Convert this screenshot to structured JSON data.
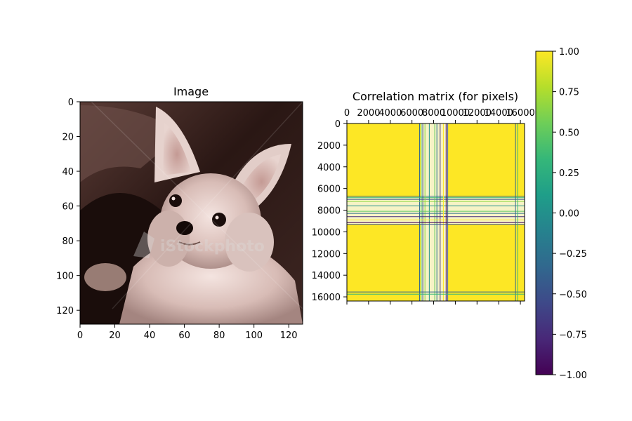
{
  "chart_data": [
    {
      "type": "image",
      "title": "Image",
      "xlim": [
        0,
        128
      ],
      "ylim": [
        128,
        0
      ],
      "x_ticks": [
        "0",
        "20",
        "40",
        "60",
        "80",
        "100",
        "120"
      ],
      "y_ticks": [
        "0",
        "20",
        "40",
        "60",
        "80",
        "100",
        "120"
      ],
      "colormap": "sepia (dark brown to pale pink)",
      "content": "photograph of a small long-haired chihuahua puppy, light fur on dark background",
      "watermark": "iStockphoto"
    },
    {
      "type": "heatmap",
      "title": "Correlation matrix (for pixels)",
      "xlim": [
        0,
        16384
      ],
      "ylim": [
        16384,
        0
      ],
      "x_ticks": [
        "0",
        "2000",
        "4000",
        "6000",
        "8000",
        "10000",
        "12000",
        "14000",
        "16000"
      ],
      "y_ticks": [
        "0",
        "2000",
        "4000",
        "6000",
        "8000",
        "10000",
        "12000",
        "14000",
        "16000"
      ],
      "x_axis_position": "top",
      "background_value": 1.0,
      "band_lines": [
        {
          "pos": 6700,
          "color": "#31688e"
        },
        {
          "pos": 6850,
          "color": "#35b779"
        },
        {
          "pos": 7000,
          "color": "#3b528b"
        },
        {
          "pos": 7200,
          "color": "#90d743"
        },
        {
          "pos": 7600,
          "color": "#21918c"
        },
        {
          "pos": 8100,
          "color": "#5ec962"
        },
        {
          "pos": 8300,
          "color": "#2c728e"
        },
        {
          "pos": 8600,
          "color": "#472d7b"
        },
        {
          "pos": 8900,
          "color": "#fde725"
        },
        {
          "pos": 9150,
          "color": "#440154"
        },
        {
          "pos": 9300,
          "color": "#3b528b"
        },
        {
          "pos": 15550,
          "color": "#31688e"
        },
        {
          "pos": 15750,
          "color": "#35b779"
        }
      ],
      "colorbar": {
        "colormap": "viridis",
        "range": [
          -1.0,
          1.0
        ],
        "ticks": [
          "1.00",
          "0.75",
          "0.50",
          "0.25",
          "0.00",
          "−0.25",
          "−0.50",
          "−0.75",
          "−1.00"
        ],
        "stops": [
          "#440154",
          "#482878",
          "#3e4989",
          "#31688e",
          "#26828e",
          "#1f9e89",
          "#35b779",
          "#6ece58",
          "#b5de2b",
          "#fde725"
        ]
      }
    }
  ]
}
